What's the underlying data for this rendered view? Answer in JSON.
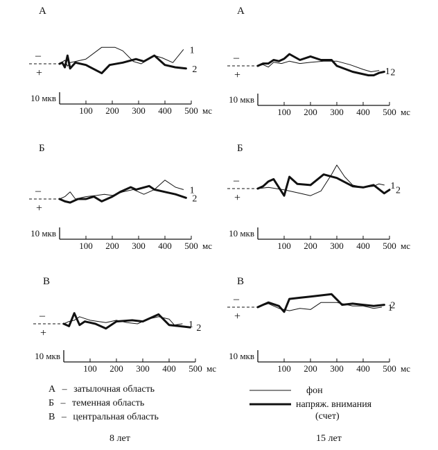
{
  "chart_data": [
    {
      "type": "line",
      "panel_label": "А",
      "column_key": "age_8",
      "x_ticks": [
        100,
        200,
        300,
        400,
        500
      ],
      "x_unit": "мс",
      "scale_label": "10 мкв",
      "polarity": {
        "neg": "–",
        "pos": "+"
      },
      "series": [
        {
          "name": "1",
          "role": "фон",
          "x": [
            0,
            20,
            30,
            40,
            60,
            100,
            160,
            210,
            240,
            280,
            310,
            360,
            390,
            430,
            470
          ],
          "y": [
            0,
            -3,
            2,
            -1,
            -2,
            -4,
            -14,
            -14,
            -11,
            -2,
            0,
            -7,
            -5,
            -1,
            -12
          ]
        },
        {
          "name": "2",
          "role": "напряж. внимания",
          "x": [
            0,
            10,
            20,
            30,
            40,
            60,
            100,
            160,
            190,
            240,
            290,
            320,
            360,
            400,
            440,
            480
          ],
          "y": [
            0,
            -1,
            3,
            -7,
            4,
            -1,
            1,
            8,
            1,
            -1,
            -4,
            -2,
            -7,
            1,
            3,
            4
          ]
        }
      ]
    },
    {
      "type": "line",
      "panel_label": "А",
      "column_key": "age_15",
      "x_ticks": [
        100,
        200,
        300,
        400,
        500
      ],
      "x_unit": "мс",
      "scale_label": "10 мкв",
      "polarity": {
        "neg": "–",
        "pos": "+"
      },
      "series": [
        {
          "name": "1",
          "role": "фон",
          "x": [
            0,
            20,
            40,
            60,
            90,
            120,
            160,
            200,
            250,
            300,
            350,
            400,
            430,
            460
          ],
          "y": [
            0,
            -1,
            1,
            -3,
            -2,
            -4,
            -2,
            -3,
            -4,
            -4,
            -1,
            3,
            5,
            4
          ]
        },
        {
          "name": "2",
          "role": "напряж. внимания",
          "x": [
            0,
            20,
            40,
            60,
            80,
            100,
            120,
            160,
            200,
            240,
            280,
            300,
            360,
            420,
            440,
            460,
            480
          ],
          "y": [
            0,
            -2,
            -2,
            -5,
            -4,
            -6,
            -10,
            -5,
            -8,
            -5,
            -5,
            0,
            5,
            8,
            8,
            6,
            5
          ]
        }
      ]
    },
    {
      "type": "line",
      "panel_label": "Б",
      "column_key": "age_8",
      "x_ticks": [
        100,
        200,
        300,
        400,
        500
      ],
      "x_unit": "мс",
      "scale_label": "10 мкв",
      "polarity": {
        "neg": "–",
        "pos": "+"
      },
      "series": [
        {
          "name": "1",
          "role": "фон",
          "x": [
            0,
            20,
            40,
            60,
            100,
            140,
            170,
            200,
            240,
            280,
            320,
            360,
            400,
            440,
            470
          ],
          "y": [
            0,
            -2,
            -6,
            0,
            -2,
            -3,
            -4,
            -3,
            -6,
            -8,
            -4,
            -8,
            -16,
            -10,
            -8
          ]
        },
        {
          "name": "2",
          "role": "напряж. внимания",
          "x": [
            0,
            20,
            40,
            70,
            100,
            130,
            160,
            200,
            230,
            270,
            290,
            340,
            360,
            400,
            440,
            480
          ],
          "y": [
            0,
            2,
            3,
            0,
            0,
            -2,
            2,
            -2,
            -6,
            -10,
            -8,
            -11,
            -8,
            -6,
            -4,
            -1
          ]
        }
      ]
    },
    {
      "type": "line",
      "panel_label": "Б",
      "column_key": "age_15",
      "x_ticks": [
        100,
        200,
        300,
        400,
        500
      ],
      "x_unit": "мс",
      "scale_label": "10 мкв",
      "polarity": {
        "neg": "–",
        "pos": "+"
      },
      "series": [
        {
          "name": "1",
          "role": "фон",
          "x": [
            0,
            40,
            100,
            160,
            200,
            240,
            280,
            300,
            330,
            360,
            400,
            440,
            460,
            480
          ],
          "y": [
            0,
            -1,
            1,
            4,
            6,
            2,
            -12,
            -20,
            -10,
            -3,
            -1,
            -2,
            -4,
            -3
          ]
        },
        {
          "name": "2",
          "role": "напряж. внимания",
          "x": [
            0,
            20,
            40,
            60,
            100,
            120,
            150,
            200,
            250,
            300,
            360,
            400,
            440,
            480,
            500
          ],
          "y": [
            0,
            -2,
            -6,
            -8,
            6,
            -10,
            -4,
            -3,
            -12,
            -9,
            -2,
            -1,
            -3,
            4,
            1
          ]
        }
      ]
    },
    {
      "type": "line",
      "panel_label": "В",
      "column_key": "age_8",
      "x_ticks": [
        100,
        200,
        300,
        400,
        500
      ],
      "x_unit": "мс",
      "scale_label": "10 мкв",
      "polarity": {
        "neg": "–",
        "pos": "+"
      },
      "series": [
        {
          "name": "1",
          "role": "фон",
          "x": [
            0,
            20,
            40,
            60,
            100,
            160,
            200,
            240,
            280,
            320,
            360,
            400,
            420,
            450
          ],
          "y": [
            0,
            -2,
            -3,
            -6,
            -3,
            -1,
            -3,
            -1,
            0,
            -4,
            -6,
            -4,
            1,
            0
          ]
        },
        {
          "name": "2",
          "role": "напряж. внимания",
          "x": [
            0,
            20,
            40,
            60,
            80,
            120,
            160,
            200,
            260,
            300,
            360,
            400,
            440,
            480
          ],
          "y": [
            0,
            2,
            -9,
            1,
            -2,
            0,
            4,
            -2,
            -3,
            -2,
            -8,
            1,
            2,
            3
          ]
        }
      ]
    },
    {
      "type": "line",
      "panel_label": "В",
      "column_key": "age_15",
      "x_ticks": [
        100,
        200,
        300,
        400,
        500
      ],
      "x_unit": "мс",
      "scale_label": "10 мкв",
      "polarity": {
        "neg": "–",
        "pos": "+"
      },
      "series": [
        {
          "name": "1",
          "role": "фон",
          "x": [
            0,
            40,
            80,
            120,
            160,
            200,
            240,
            300,
            360,
            400,
            440,
            470
          ],
          "y": [
            0,
            -3,
            1,
            3,
            1,
            2,
            -4,
            -4,
            -1,
            -1,
            1,
            0
          ]
        },
        {
          "name": "2",
          "role": "напряж. внимания",
          "x": [
            0,
            40,
            80,
            100,
            120,
            160,
            200,
            240,
            280,
            320,
            360,
            400,
            440,
            480
          ],
          "y": [
            0,
            -4,
            -1,
            4,
            -7,
            -8,
            -9,
            -10,
            -11,
            -2,
            -3,
            -2,
            -1,
            -2
          ]
        }
      ]
    }
  ],
  "legend": {
    "regions": [
      {
        "letter": "А",
        "dash": "–",
        "text": "затылочная область"
      },
      {
        "letter": "Б",
        "dash": "–",
        "text": "теменная область"
      },
      {
        "letter": "В",
        "dash": "–",
        "text": "центральная область"
      }
    ],
    "series": [
      {
        "text": "фон",
        "style": "thin"
      },
      {
        "text": "напряж. внимания",
        "text2": "(счет)",
        "style": "thick"
      }
    ]
  },
  "column_labels": {
    "age_8": "8 лет",
    "age_15": "15 лет"
  },
  "colors": {
    "line": "#111111",
    "background": "#ffffff"
  }
}
